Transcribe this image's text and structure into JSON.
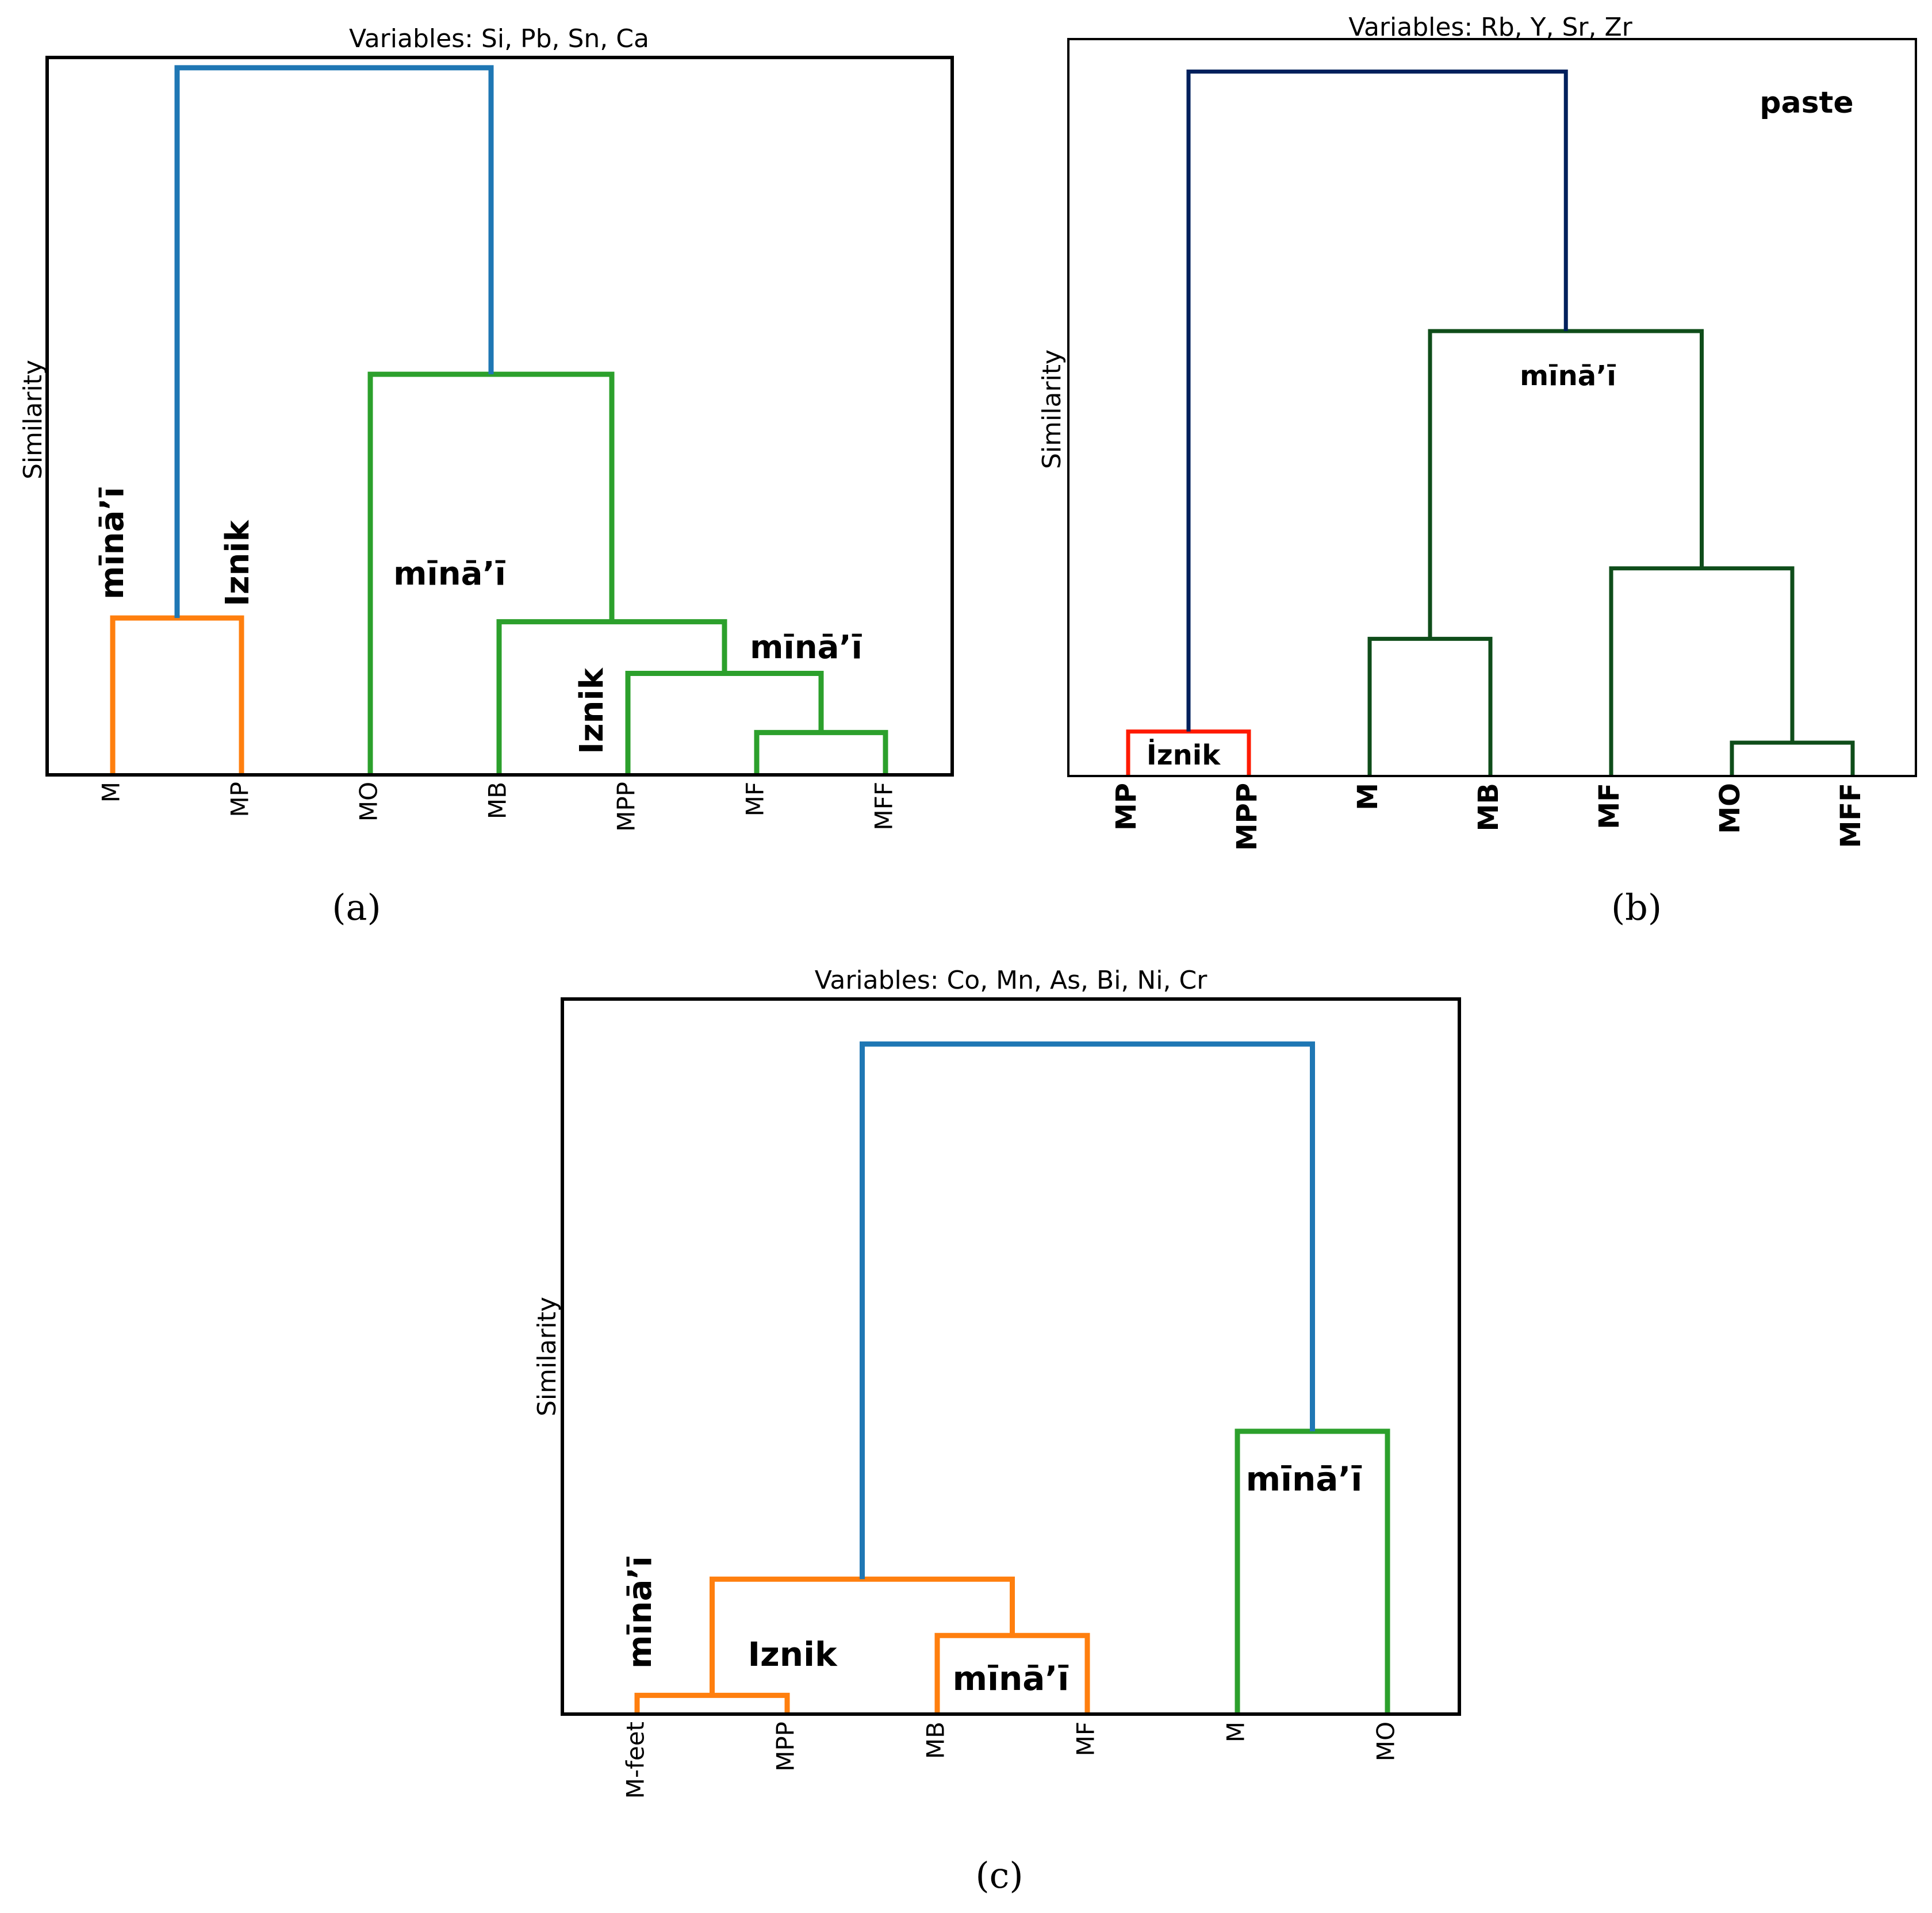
{
  "figure": {
    "panels": [
      "a",
      "b",
      "c"
    ],
    "caption_labels": [
      "(a)",
      "(b)",
      "(c)"
    ]
  },
  "colors": {
    "frame": "#000000",
    "blue": "#1f77b4",
    "orange": "#ff7f0e",
    "green": "#2ca02c",
    "navy": "#00205c",
    "darkgreen": "#0f4d1a",
    "red": "#ff1a00"
  },
  "chart_data": [
    {
      "id": "a",
      "type": "dendrogram",
      "title": "Variables: Si, Pb, Sn, Ca",
      "ylabel": "Similarity",
      "leaves": [
        "M",
        "MP",
        "MO",
        "MB",
        "MPP",
        "MF",
        "MFF"
      ],
      "ylim": [
        0,
        1
      ],
      "links": [
        {
          "left": "MF",
          "right": "MFF",
          "height": 0.055,
          "color": "green"
        },
        {
          "left": "MPP",
          "right": "MF+MFF",
          "height": 0.135,
          "color": "green"
        },
        {
          "left": "MB",
          "right": "MPP+MF+MFF",
          "height": 0.205,
          "color": "green"
        },
        {
          "left": "M",
          "right": "MP",
          "height": 0.21,
          "color": "orange"
        },
        {
          "left": "MO",
          "right": "MB+MPP+MF+MFF",
          "height": 0.54,
          "color": "green"
        },
        {
          "left": "M+MP",
          "right": "MO+MB+MPP+MF+MFF",
          "height": 0.955,
          "color": "blue"
        }
      ],
      "annotations": [
        "mīnā’ī",
        "Iznik",
        "mīnā’ī",
        "mīnā’ī",
        "Iznik"
      ]
    },
    {
      "id": "b",
      "type": "dendrogram",
      "title": "Variables: Rb, Y, Sr, Zr",
      "ylabel": "Similarity",
      "leaves": [
        "MP",
        "MPP",
        "M",
        "MB",
        "MF",
        "MO",
        "MFF"
      ],
      "ylim": [
        0,
        1
      ],
      "links": [
        {
          "left": "MO",
          "right": "MFF",
          "height": 0.045,
          "color": "darkgreen"
        },
        {
          "left": "MP",
          "right": "MPP",
          "height": 0.06,
          "color": "red"
        },
        {
          "left": "M",
          "right": "MB",
          "height": 0.185,
          "color": "darkgreen"
        },
        {
          "left": "MF",
          "right": "MO+MFF",
          "height": 0.28,
          "color": "darkgreen"
        },
        {
          "left": "M+MB",
          "right": "MF+MO+MFF",
          "height": 0.6,
          "color": "darkgreen"
        },
        {
          "left": "MP+MPP",
          "right": "M+MB+MF+MO+MFF",
          "height": 0.95,
          "color": "navy"
        }
      ],
      "annotations": [
        "paste",
        "mīnā’ī",
        "İznik"
      ]
    },
    {
      "id": "c",
      "type": "dendrogram",
      "title": "Variables: Co, Mn, As, Bi, Ni, Cr",
      "ylabel": "Similarity",
      "leaves": [
        "M-feet",
        "MPP",
        "MB",
        "MF",
        "M",
        "MO"
      ],
      "ylim": [
        0,
        1
      ],
      "links": [
        {
          "left": "M-feet",
          "right": "MPP",
          "height": 0.025,
          "color": "orange"
        },
        {
          "left": "MB",
          "right": "MF",
          "height": 0.11,
          "color": "orange"
        },
        {
          "left": "M-feet+MPP",
          "right": "MB+MF",
          "height": 0.19,
          "color": "orange"
        },
        {
          "left": "M",
          "right": "MO",
          "height": 0.4,
          "color": "green"
        },
        {
          "left": "M-feet+MPP+MB+MF",
          "right": "M+MO",
          "height": 0.95,
          "color": "blue"
        }
      ],
      "annotations": [
        "mīnā’ī",
        "Iznik",
        "mīnā’ī",
        "mīnā’ī"
      ]
    }
  ]
}
